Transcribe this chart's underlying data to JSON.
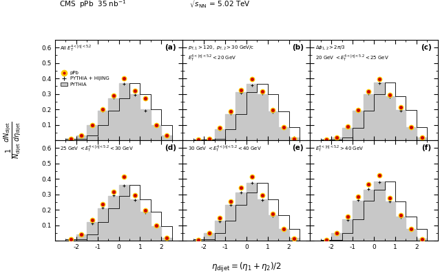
{
  "fig_title_left": "CMS  pPb  35 nb$^{-1}$",
  "fig_title_right": "$\\sqrt{s_{\\mathrm{NN}}}$ = 5.02 TeV",
  "xlabel": "$\\eta_{\\mathrm{dijet}} = (\\eta_1 + \\eta_2)/2$",
  "xlim": [
    -3.0,
    3.0
  ],
  "ylim": [
    0.0,
    0.65
  ],
  "yticks": [
    0.0,
    0.1,
    0.2,
    0.3,
    0.4,
    0.5,
    0.6
  ],
  "xticks": [
    -2,
    -1,
    0,
    1,
    2
  ],
  "bin_edges": [
    -2.5,
    -2.0,
    -1.5,
    -1.0,
    -0.5,
    0.0,
    0.5,
    1.0,
    1.5,
    2.0,
    2.5
  ],
  "panel_labels": [
    "(a)",
    "(b)",
    "(c)",
    "(d)",
    "(e)",
    "(f)"
  ],
  "panel_titles": [
    "All $E_T^{4<|\\eta|<5.2}$",
    "$p_{T,1} > 120,\\ p_{T,2} > 30$ GeV/c\n$E_T^{4<|\\eta|<5.2} < 20$ GeV",
    "$\\Delta\\phi_{1,2} > 2\\pi/3$\n$20$ GeV $< E_T^{4<|\\eta|<5.2} < 25$ GeV",
    "$25$ GeV $< E_T^{4<|\\eta|<5.2} < 30$ GeV",
    "$30$ GeV $< E_T^{4<|\\eta|<5.2} < 40$ GeV",
    "$E_T^{4<|\\eta|<5.2} > 40$ GeV"
  ],
  "pythia_hist": [
    [
      0.01,
      0.03,
      0.1,
      0.19,
      0.27,
      0.37,
      0.3,
      0.2,
      0.1,
      0.03
    ],
    [
      0.005,
      0.01,
      0.07,
      0.17,
      0.31,
      0.365,
      0.3,
      0.185,
      0.085,
      0.02
    ],
    [
      0.005,
      0.02,
      0.08,
      0.19,
      0.3,
      0.375,
      0.285,
      0.195,
      0.085,
      0.02
    ],
    [
      0.01,
      0.04,
      0.12,
      0.21,
      0.29,
      0.36,
      0.265,
      0.185,
      0.095,
      0.02
    ],
    [
      0.01,
      0.05,
      0.13,
      0.23,
      0.31,
      0.375,
      0.265,
      0.165,
      0.075,
      0.02
    ],
    [
      0.005,
      0.05,
      0.14,
      0.26,
      0.33,
      0.385,
      0.255,
      0.155,
      0.075,
      0.015
    ]
  ],
  "ppb_data": [
    [
      0.01,
      0.03,
      0.1,
      0.2,
      0.29,
      0.4,
      0.32,
      0.27,
      0.1,
      0.03
    ],
    [
      0.003,
      0.01,
      0.08,
      0.185,
      0.325,
      0.395,
      0.315,
      0.195,
      0.085,
      0.01
    ],
    [
      0.003,
      0.02,
      0.09,
      0.195,
      0.315,
      0.395,
      0.295,
      0.215,
      0.085,
      0.02
    ],
    [
      0.01,
      0.04,
      0.135,
      0.235,
      0.315,
      0.415,
      0.295,
      0.195,
      0.1,
      0.02
    ],
    [
      0.005,
      0.05,
      0.145,
      0.255,
      0.345,
      0.415,
      0.295,
      0.175,
      0.075,
      0.015
    ],
    [
      0.005,
      0.05,
      0.155,
      0.285,
      0.365,
      0.425,
      0.275,
      0.165,
      0.075,
      0.01
    ]
  ],
  "ph_data": [
    [
      0.01,
      0.033,
      0.095,
      0.19,
      0.275,
      0.365,
      0.292,
      0.192,
      0.092,
      0.028
    ],
    [
      0.005,
      0.013,
      0.073,
      0.173,
      0.308,
      0.358,
      0.302,
      0.182,
      0.082,
      0.018
    ],
    [
      0.005,
      0.023,
      0.083,
      0.193,
      0.303,
      0.368,
      0.282,
      0.192,
      0.082,
      0.018
    ],
    [
      0.01,
      0.043,
      0.113,
      0.213,
      0.292,
      0.358,
      0.262,
      0.182,
      0.092,
      0.018
    ],
    [
      0.01,
      0.053,
      0.123,
      0.233,
      0.313,
      0.372,
      0.262,
      0.162,
      0.072,
      0.013
    ],
    [
      0.005,
      0.053,
      0.133,
      0.263,
      0.332,
      0.378,
      0.252,
      0.152,
      0.072,
      0.008
    ]
  ],
  "hist_color": "#c8c8c8",
  "hist_edge_color": "#1a1a1a",
  "ppb_face_color": "#cc0000",
  "ppb_edge_color": "#ffcc00",
  "ph_color": "#111111",
  "legend_labels": [
    "pPb",
    "PYTHIA + HIJING",
    "PYTHIA"
  ]
}
